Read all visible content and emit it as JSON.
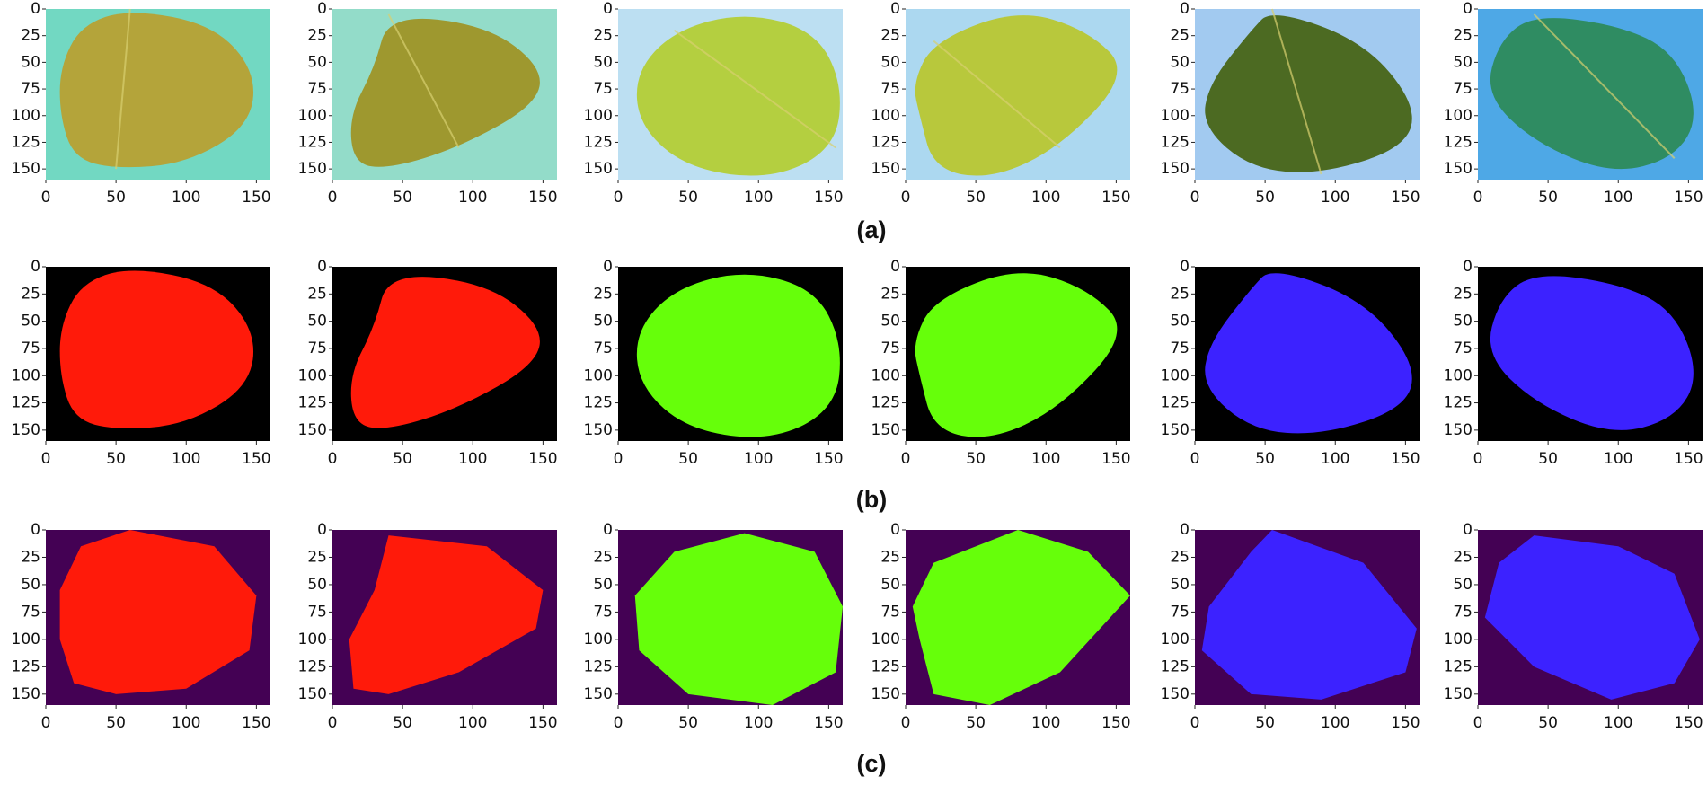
{
  "figure": {
    "xticks": [
      0,
      50,
      100,
      150
    ],
    "yticks": [
      0,
      25,
      50,
      75,
      100,
      125,
      150
    ],
    "xlim": [
      0,
      160
    ],
    "ylim": [
      160,
      0
    ],
    "rows": [
      {
        "label": "(a)"
      },
      {
        "label": "(b)"
      },
      {
        "label": "(c)"
      }
    ]
  }
}
